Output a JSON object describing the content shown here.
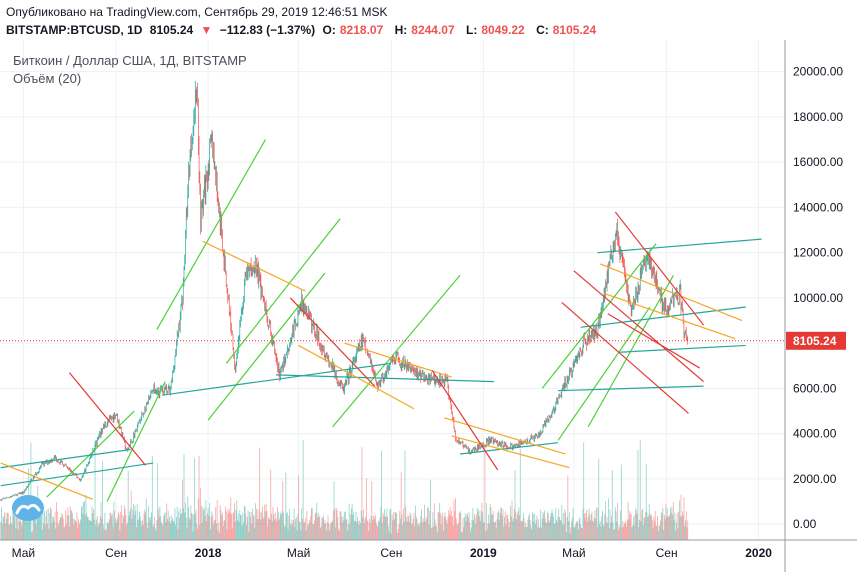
{
  "header": {
    "published": "Опубликовано на TradingView.com, Сентябрь 29, 2019 12:46:51 MSK",
    "symbol": "BITSTAMP:BTCUSD, 1D",
    "last": "8105.24",
    "change": "−112.83 (−1.37%)",
    "o_label": "O:",
    "o_value": "8218.07",
    "h_label": "H:",
    "h_value": "8244.07",
    "l_label": "L:",
    "l_value": "8049.22",
    "c_label": "C:",
    "c_value": "8105.24"
  },
  "legend": {
    "title": "Биткоин / Доллар США, 1Д, BITSTAMP",
    "volume": "Объём (20)"
  },
  "colors": {
    "up": "#26a69a",
    "down": "#ef5350",
    "green_channel": "#4cd137",
    "orange_channel": "#f5a623",
    "red_channel": "#e53935",
    "teal_channel": "#26a69a",
    "last_price_line": "#e53935"
  },
  "icons": {
    "logo": "tradingview-cloud-icon",
    "price_tag": "last-price-tag"
  },
  "chart_data": {
    "type": "candlestick",
    "price_axis": {
      "ticks": [
        0,
        2000,
        4000,
        6000,
        8000,
        10000,
        12000,
        14000,
        16000,
        18000,
        20000
      ],
      "labels": [
        "0.00",
        "2000.00",
        "4000.00",
        "6000.00",
        "8000.00",
        "10000.00",
        "12000.00",
        "14000.00",
        "16000.00",
        "18000.00",
        "20000.00"
      ],
      "ylim": [
        -700,
        21400
      ],
      "last_price": 8105.24,
      "last_label": "8105.24"
    },
    "time_axis": {
      "labels": [
        "Май",
        "Сен",
        "2018",
        "Май",
        "Сен",
        "2019",
        "Май",
        "Сен",
        "2020"
      ],
      "dates": [
        "2017-05-01",
        "2017-09-01",
        "2018-01-01",
        "2018-05-01",
        "2018-09-01",
        "2019-01-01",
        "2019-05-01",
        "2019-09-01",
        "2020-01-01"
      ],
      "xlim": [
        "2017-03-31",
        "2020-02-05"
      ]
    },
    "price_path": [
      [
        "2017-04-01",
        1080
      ],
      [
        "2017-05-01",
        1400
      ],
      [
        "2017-05-25",
        2600
      ],
      [
        "2017-06-12",
        2950
      ],
      [
        "2017-07-16",
        1950
      ],
      [
        "2017-08-15",
        4300
      ],
      [
        "2017-09-01",
        4900
      ],
      [
        "2017-09-15",
        3200
      ],
      [
        "2017-10-20",
        5900
      ],
      [
        "2017-11-12",
        5900
      ],
      [
        "2017-11-28",
        10000
      ],
      [
        "2017-12-07",
        16000
      ],
      [
        "2017-12-17",
        19500
      ],
      [
        "2017-12-22",
        13500
      ],
      [
        "2018-01-06",
        17000
      ],
      [
        "2018-02-06",
        6900
      ],
      [
        "2018-02-20",
        11000
      ],
      [
        "2018-03-05",
        11500
      ],
      [
        "2018-04-06",
        6600
      ],
      [
        "2018-05-05",
        9800
      ],
      [
        "2018-06-29",
        5900
      ],
      [
        "2018-07-25",
        8200
      ],
      [
        "2018-08-14",
        6100
      ],
      [
        "2018-09-05",
        7300
      ],
      [
        "2018-10-20",
        6400
      ],
      [
        "2018-11-14",
        6300
      ],
      [
        "2018-11-25",
        3800
      ],
      [
        "2018-12-15",
        3200
      ],
      [
        "2019-01-10",
        3700
      ],
      [
        "2019-02-08",
        3400
      ],
      [
        "2019-03-15",
        3900
      ],
      [
        "2019-04-02",
        4900
      ],
      [
        "2019-05-14",
        8000
      ],
      [
        "2019-06-01",
        8600
      ],
      [
        "2019-06-26",
        13000
      ],
      [
        "2019-07-16",
        9400
      ],
      [
        "2019-08-06",
        11900
      ],
      [
        "2019-08-29",
        9500
      ],
      [
        "2019-09-19",
        10200
      ],
      [
        "2019-09-24",
        8500
      ],
      [
        "2019-09-29",
        8105
      ]
    ],
    "trendlines": [
      {
        "color": "green",
        "x1": "2017-08-20",
        "y1": 1000,
        "x2": "2017-11-05",
        "y2": 6300
      },
      {
        "color": "green",
        "x1": "2017-06-01",
        "y1": 1200,
        "x2": "2017-09-25",
        "y2": 5000
      },
      {
        "color": "green",
        "x1": "2017-10-25",
        "y1": 8600,
        "x2": "2018-03-18",
        "y2": 17000
      },
      {
        "color": "green",
        "x1": "2018-01-01",
        "y1": 4600,
        "x2": "2018-06-05",
        "y2": 11100
      },
      {
        "color": "green",
        "x1": "2018-01-25",
        "y1": 7100,
        "x2": "2018-06-25",
        "y2": 13500
      },
      {
        "color": "green",
        "x1": "2018-06-15",
        "y1": 4300,
        "x2": "2018-12-01",
        "y2": 11000
      },
      {
        "color": "green",
        "x1": "2019-03-20",
        "y1": 6000,
        "x2": "2019-08-18",
        "y2": 12400
      },
      {
        "color": "green",
        "x1": "2019-04-10",
        "y1": 3700,
        "x2": "2019-08-10",
        "y2": 9600
      },
      {
        "color": "green",
        "x1": "2019-05-20",
        "y1": 4300,
        "x2": "2019-09-10",
        "y2": 11000
      },
      {
        "color": "teal",
        "x1": "2017-04-01",
        "y1": 2500,
        "x2": "2017-09-20",
        "y2": 3300
      },
      {
        "color": "teal",
        "x1": "2017-04-01",
        "y1": 1700,
        "x2": "2017-10-20",
        "y2": 2700
      },
      {
        "color": "teal",
        "x1": "2017-11-01",
        "y1": 5700,
        "x2": "2018-08-30",
        "y2": 7100
      },
      {
        "color": "teal",
        "x1": "2018-04-01",
        "y1": 6600,
        "x2": "2019-01-15",
        "y2": 6300
      },
      {
        "color": "teal",
        "x1": "2018-12-01",
        "y1": 3100,
        "x2": "2019-04-10",
        "y2": 3600
      },
      {
        "color": "teal",
        "x1": "2019-04-10",
        "y1": 5900,
        "x2": "2019-10-20",
        "y2": 6100
      },
      {
        "color": "teal",
        "x1": "2019-07-01",
        "y1": 7600,
        "x2": "2019-12-15",
        "y2": 7900
      },
      {
        "color": "teal",
        "x1": "2019-06-01",
        "y1": 12000,
        "x2": "2020-01-05",
        "y2": 12600
      },
      {
        "color": "teal",
        "x1": "2019-05-10",
        "y1": 8700,
        "x2": "2019-12-15",
        "y2": 9600
      },
      {
        "color": "orange",
        "x1": "2017-04-01",
        "y1": 2700,
        "x2": "2017-08-01",
        "y2": 1100
      },
      {
        "color": "orange",
        "x1": "2017-12-25",
        "y1": 12500,
        "x2": "2018-05-10",
        "y2": 10300
      },
      {
        "color": "orange",
        "x1": "2018-05-01",
        "y1": 7900,
        "x2": "2018-10-01",
        "y2": 5100
      },
      {
        "color": "orange",
        "x1": "2018-07-01",
        "y1": 8000,
        "x2": "2018-11-20",
        "y2": 6500
      },
      {
        "color": "orange",
        "x1": "2018-11-10",
        "y1": 4700,
        "x2": "2019-04-20",
        "y2": 3100
      },
      {
        "color": "orange",
        "x1": "2018-11-20",
        "y1": 3900,
        "x2": "2019-04-25",
        "y2": 2500
      },
      {
        "color": "orange",
        "x1": "2019-06-05",
        "y1": 11500,
        "x2": "2019-12-10",
        "y2": 9000
      },
      {
        "color": "orange",
        "x1": "2019-06-10",
        "y1": 10200,
        "x2": "2019-12-01",
        "y2": 8200
      },
      {
        "color": "red",
        "x1": "2017-07-01",
        "y1": 6700,
        "x2": "2017-10-10",
        "y2": 2600
      },
      {
        "color": "red",
        "x1": "2018-04-20",
        "y1": 10000,
        "x2": "2018-08-10",
        "y2": 6100
      },
      {
        "color": "red",
        "x1": "2018-10-25",
        "y1": 6800,
        "x2": "2019-01-20",
        "y2": 2400
      },
      {
        "color": "red",
        "x1": "2019-06-25",
        "y1": 13800,
        "x2": "2019-10-20",
        "y2": 8800
      },
      {
        "color": "red",
        "x1": "2019-05-01",
        "y1": 11200,
        "x2": "2019-10-20",
        "y2": 6300
      },
      {
        "color": "red",
        "x1": "2019-04-15",
        "y1": 9800,
        "x2": "2019-09-30",
        "y2": 4900
      },
      {
        "color": "red",
        "x1": "2019-06-15",
        "y1": 9300,
        "x2": "2019-10-15",
        "y2": 6900
      }
    ]
  }
}
